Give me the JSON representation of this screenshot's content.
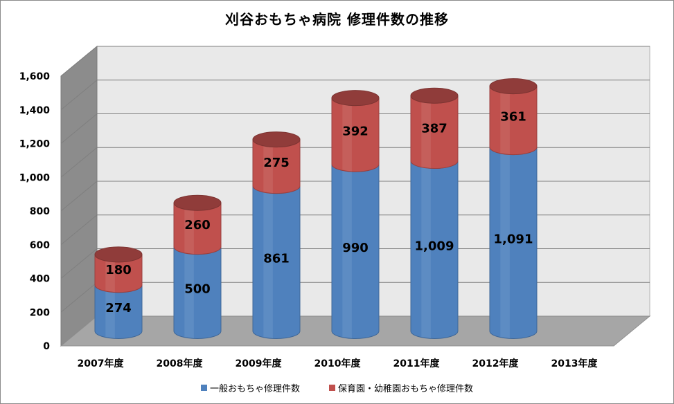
{
  "chart_data": {
    "type": "bar",
    "title": "刈谷おもちゃ病院 修理件数の推移",
    "categories": [
      "2007年度",
      "2008年度",
      "2009年度",
      "2010年度",
      "2011年度",
      "2012年度",
      "2013年度"
    ],
    "series": [
      {
        "name": "一般おもちゃ修理件数",
        "values": [
          274,
          500,
          861,
          990,
          1009,
          1091,
          null
        ],
        "color": "#4f81bd"
      },
      {
        "name": "保育園・幼稚園おもちゃ修理件数",
        "values": [
          180,
          260,
          275,
          392,
          387,
          361,
          null
        ],
        "color": "#c0504d"
      }
    ],
    "data_labels": [
      [
        "274",
        "500",
        "861",
        "990",
        "1,009",
        "1,091",
        ""
      ],
      [
        "180",
        "260",
        "275",
        "392",
        "387",
        "361",
        ""
      ]
    ],
    "stacked": true,
    "style": "3d-cylinder",
    "ylim": [
      0,
      1600
    ],
    "yticks": [
      0,
      200,
      400,
      600,
      800,
      1000,
      1200,
      1400,
      1600
    ],
    "ytick_labels": [
      "0",
      "200",
      "400",
      "600",
      "800",
      "1,000",
      "1,200",
      "1,400",
      "1,600"
    ],
    "grid": true,
    "legend_position": "bottom",
    "xlabel": "",
    "ylabel": ""
  }
}
